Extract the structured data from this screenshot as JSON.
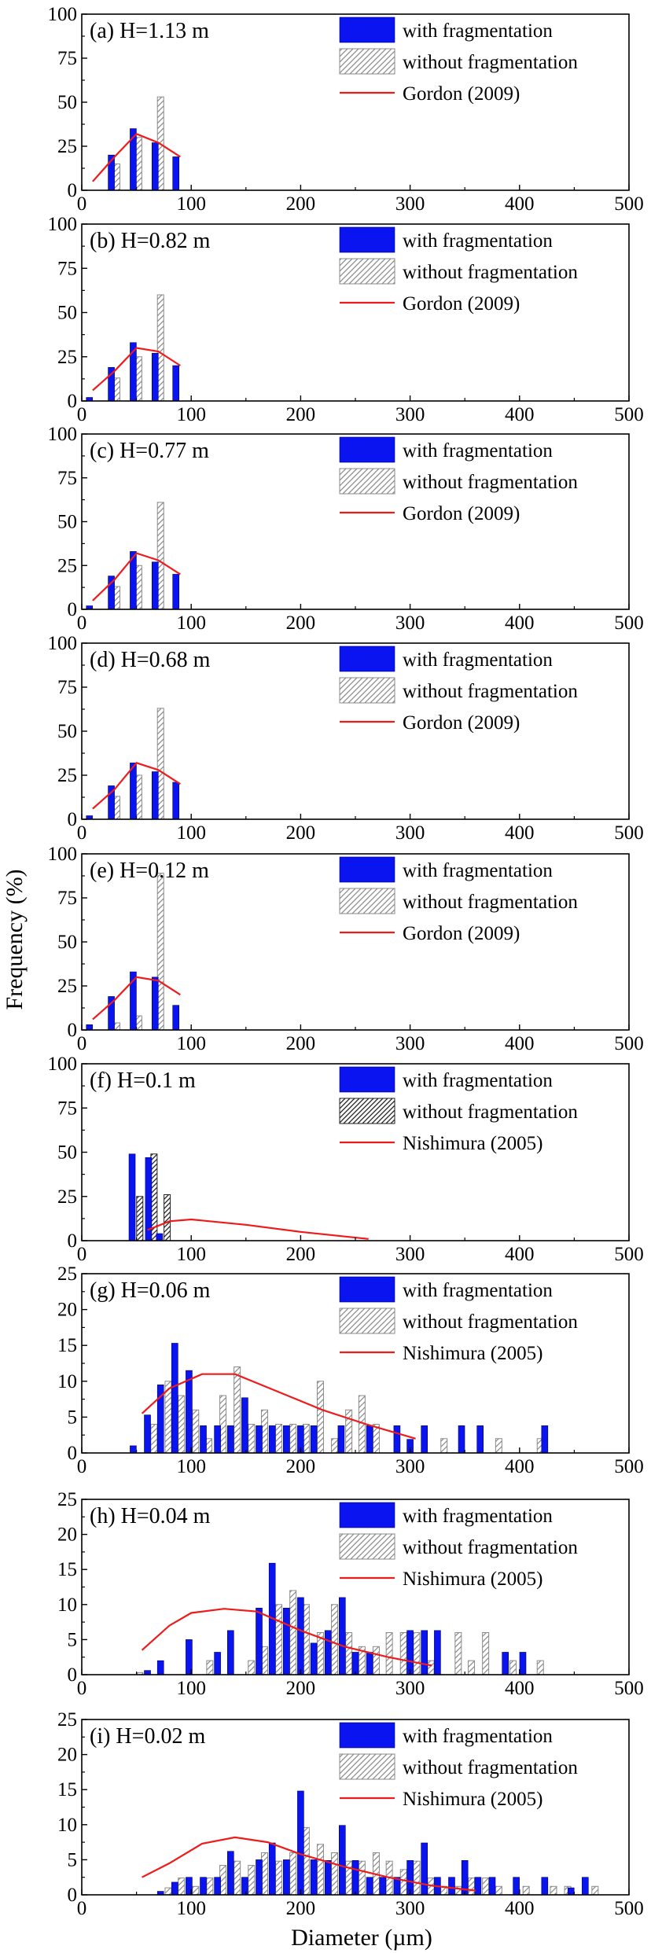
{
  "figure": {
    "ylabel": "Frequency (%)",
    "xlabel": "Diameter (µm)"
  },
  "colors": {
    "with": "#0a14f0",
    "without_stroke": "#8a8a8a",
    "without_stroke_dark": "#222222",
    "fit": "#ee1b1b",
    "axis": "#000000"
  },
  "chart_data": [
    {
      "type": "bar",
      "title": "(a) H=1.13 m",
      "xlim": [
        0,
        500
      ],
      "ylim": [
        0,
        100
      ],
      "yticks": [
        0,
        25,
        50,
        75,
        100
      ],
      "xticks": [
        0,
        100,
        200,
        300,
        400,
        500
      ],
      "legend": [
        "with fragmentation",
        "without fragmentation",
        "Gordon (2009)"
      ],
      "legend_position": "top-right",
      "hatch_style": "light",
      "series": [
        {
          "name": "with fragmentation",
          "x": [
            27,
            47,
            67,
            86
          ],
          "values": [
            20,
            35,
            27,
            19
          ]
        },
        {
          "name": "without fragmentation",
          "x": [
            32,
            52,
            72,
            91
          ],
          "values": [
            15,
            30,
            53,
            0
          ]
        },
        {
          "name": "Gordon (2009)",
          "kind": "line",
          "x": [
            10,
            30,
            50,
            70,
            90
          ],
          "values": [
            5,
            19,
            32,
            27,
            19
          ]
        }
      ]
    },
    {
      "type": "bar",
      "title": "(b) H=0.82 m",
      "xlim": [
        0,
        500
      ],
      "ylim": [
        0,
        100
      ],
      "yticks": [
        0,
        25,
        50,
        75,
        100
      ],
      "xticks": [
        0,
        100,
        200,
        300,
        400,
        500
      ],
      "legend": [
        "with fragmentation",
        "without fragmentation",
        "Gordon (2009)"
      ],
      "legend_position": "top-right",
      "hatch_style": "light",
      "series": [
        {
          "name": "with fragmentation",
          "x": [
            7,
            27,
            47,
            67,
            86
          ],
          "values": [
            2,
            19,
            33,
            27,
            20
          ]
        },
        {
          "name": "without fragmentation",
          "x": [
            12,
            32,
            52,
            72,
            91
          ],
          "values": [
            0,
            13,
            25,
            60,
            0
          ]
        },
        {
          "name": "Gordon (2009)",
          "kind": "line",
          "x": [
            10,
            30,
            50,
            70,
            90
          ],
          "values": [
            6,
            17,
            30,
            28,
            20
          ]
        }
      ]
    },
    {
      "type": "bar",
      "title": "(c) H=0.77 m",
      "xlim": [
        0,
        500
      ],
      "ylim": [
        0,
        100
      ],
      "yticks": [
        0,
        25,
        50,
        75,
        100
      ],
      "xticks": [
        0,
        100,
        200,
        300,
        400,
        500
      ],
      "legend": [
        "with fragmentation",
        "without fragmentation",
        "Gordon (2009)"
      ],
      "legend_position": "top-right",
      "hatch_style": "light",
      "series": [
        {
          "name": "with fragmentation",
          "x": [
            7,
            27,
            47,
            67,
            86
          ],
          "values": [
            2,
            19,
            33,
            27,
            20
          ]
        },
        {
          "name": "without fragmentation",
          "x": [
            12,
            32,
            52,
            72,
            91
          ],
          "values": [
            0,
            13,
            25,
            61,
            0
          ]
        },
        {
          "name": "Gordon (2009)",
          "kind": "line",
          "x": [
            10,
            30,
            50,
            70,
            90
          ],
          "values": [
            5,
            17,
            32,
            28,
            20
          ]
        }
      ]
    },
    {
      "type": "bar",
      "title": "(d) H=0.68 m",
      "xlim": [
        0,
        500
      ],
      "ylim": [
        0,
        100
      ],
      "yticks": [
        0,
        25,
        50,
        75,
        100
      ],
      "xticks": [
        0,
        100,
        200,
        300,
        400,
        500
      ],
      "legend": [
        "with fragmentation",
        "without fragmentation",
        "Gordon (2009)"
      ],
      "legend_position": "top-right",
      "hatch_style": "light",
      "series": [
        {
          "name": "with fragmentation",
          "x": [
            7,
            27,
            47,
            67,
            86
          ],
          "values": [
            2,
            19,
            32,
            27,
            21
          ]
        },
        {
          "name": "without fragmentation",
          "x": [
            12,
            32,
            52,
            72,
            91
          ],
          "values": [
            0,
            13,
            25,
            63,
            0
          ]
        },
        {
          "name": "Gordon (2009)",
          "kind": "line",
          "x": [
            10,
            30,
            50,
            70,
            90
          ],
          "values": [
            6,
            17,
            32,
            28,
            20
          ]
        }
      ]
    },
    {
      "type": "bar",
      "title": "(e) H=0.12 m",
      "xlim": [
        0,
        500
      ],
      "ylim": [
        0,
        100
      ],
      "yticks": [
        0,
        25,
        50,
        75,
        100
      ],
      "xticks": [
        0,
        100,
        200,
        300,
        400,
        500
      ],
      "legend": [
        "with fragmentation",
        "without fragmentation",
        "Gordon (2009)"
      ],
      "legend_position": "top-right",
      "hatch_style": "light",
      "series": [
        {
          "name": "with fragmentation",
          "x": [
            7,
            27,
            47,
            67,
            86
          ],
          "values": [
            3,
            19,
            33,
            30,
            14
          ]
        },
        {
          "name": "without fragmentation",
          "x": [
            12,
            32,
            52,
            72,
            91
          ],
          "values": [
            0,
            4,
            8,
            89,
            0
          ]
        },
        {
          "name": "Gordon (2009)",
          "kind": "line",
          "x": [
            10,
            30,
            50,
            70,
            90
          ],
          "values": [
            6,
            17,
            30,
            28,
            20
          ]
        }
      ]
    },
    {
      "type": "bar",
      "title": "(f) H=0.1 m",
      "xlim": [
        0,
        500
      ],
      "ylim": [
        0,
        100
      ],
      "yticks": [
        0,
        25,
        50,
        75,
        100
      ],
      "xticks": [
        0,
        100,
        200,
        300,
        400,
        500
      ],
      "legend": [
        "with fragmentation",
        "without fragmentation",
        "Nishimura (2005)"
      ],
      "legend_position": "top-right",
      "hatch_style": "dark",
      "series": [
        {
          "name": "with fragmentation",
          "x": [
            46,
            61,
            71
          ],
          "values": [
            49,
            47,
            4
          ]
        },
        {
          "name": "without fragmentation",
          "x": [
            53,
            66,
            78
          ],
          "values": [
            25,
            49,
            26
          ]
        },
        {
          "name": "Nishimura (2005)",
          "kind": "line",
          "x": [
            60,
            80,
            100,
            150,
            200,
            262
          ],
          "values": [
            6,
            11,
            12,
            9,
            5,
            1
          ]
        }
      ]
    },
    {
      "type": "bar",
      "title": "(g) H=0.06 m",
      "xlim": [
        0,
        500
      ],
      "ylim": [
        0,
        25
      ],
      "yticks": [
        0,
        5,
        10,
        15,
        20,
        25
      ],
      "xticks": [
        0,
        100,
        200,
        300,
        400,
        500
      ],
      "legend": [
        "with fragmentation",
        "without fragmentation",
        "Nishimura (2005)"
      ],
      "legend_position": "top-right",
      "hatch_style": "light",
      "series": [
        {
          "name": "with fragmentation",
          "x": [
            47,
            60,
            72,
            85,
            98,
            111,
            124,
            136,
            149,
            162,
            174,
            187,
            200,
            212,
            237,
            263,
            288,
            300,
            313,
            347,
            364,
            423
          ],
          "values": [
            1,
            5.3,
            9.5,
            15.3,
            11.5,
            3.8,
            3.8,
            3.8,
            7.7,
            3.8,
            3.8,
            3.8,
            3.8,
            3.8,
            3.8,
            3.8,
            3.8,
            1.9,
            3.8,
            3.8,
            3.8,
            3.8
          ]
        },
        {
          "name": "without fragmentation",
          "x": [
            66,
            79,
            91,
            104,
            116,
            129,
            142,
            155,
            167,
            180,
            193,
            205,
            218,
            231,
            244,
            256,
            269,
            331,
            381,
            419
          ],
          "values": [
            4,
            10,
            8,
            6,
            2,
            8,
            12,
            4,
            6,
            4,
            4,
            4,
            10,
            2,
            6,
            8,
            4,
            2,
            2,
            2
          ]
        },
        {
          "name": "Nishimura (2005)",
          "kind": "line",
          "x": [
            55,
            80,
            110,
            140,
            180,
            220,
            260,
            305
          ],
          "values": [
            5.5,
            9,
            11,
            11,
            8.5,
            6,
            4,
            2
          ]
        }
      ]
    },
    {
      "type": "bar",
      "title": "(h) H=0.04 m",
      "xlim": [
        0,
        500
      ],
      "ylim": [
        0,
        25
      ],
      "yticks": [
        0,
        5,
        10,
        15,
        20,
        25
      ],
      "xticks": [
        0,
        100,
        200,
        300,
        400,
        500
      ],
      "legend": [
        "with fragmentation",
        "without fragmentation",
        "Nishimura (2005)"
      ],
      "legend_position": "top-right",
      "hatch_style": "light",
      "series": [
        {
          "name": "with fragmentation",
          "x": [
            60,
            72,
            98,
            124,
            136,
            162,
            174,
            187,
            200,
            212,
            225,
            238,
            250,
            263,
            300,
            313,
            325,
            387,
            403
          ],
          "values": [
            0.6,
            2,
            5,
            3.2,
            6.3,
            9.5,
            15.9,
            9.5,
            11,
            4.5,
            6.3,
            11,
            3.2,
            3.2,
            6.3,
            6.3,
            6.3,
            3.2,
            3.2
          ]
        },
        {
          "name": "without fragmentation",
          "x": [
            53,
            117,
            155,
            167,
            180,
            193,
            205,
            218,
            231,
            244,
            256,
            269,
            281,
            294,
            306,
            319,
            344,
            356,
            369,
            394,
            419
          ],
          "values": [
            0.3,
            2,
            2,
            4,
            10,
            12,
            10,
            6,
            10,
            6,
            4,
            4,
            6,
            6,
            6,
            2,
            6,
            2,
            6,
            2,
            2
          ]
        },
        {
          "name": "Nishimura (2005)",
          "kind": "line",
          "x": [
            55,
            80,
            100,
            130,
            160,
            200,
            240,
            280,
            320
          ],
          "values": [
            3.5,
            7,
            8.8,
            9.4,
            9,
            6.3,
            4,
            2.5,
            1.3
          ]
        }
      ]
    },
    {
      "type": "bar",
      "title": "(i) H=0.02 m",
      "xlim": [
        0,
        500
      ],
      "ylim": [
        0,
        25
      ],
      "yticks": [
        0,
        5,
        10,
        15,
        20,
        25
      ],
      "xticks": [
        0,
        100,
        200,
        300,
        400,
        500
      ],
      "legend": [
        "with fragmentation",
        "without fragmentation",
        "Nishimura (2005)"
      ],
      "legend_position": "top-right",
      "hatch_style": "light",
      "series": [
        {
          "name": "with fragmentation",
          "x": [
            72,
            85,
            98,
            111,
            124,
            136,
            149,
            162,
            174,
            187,
            200,
            212,
            225,
            238,
            250,
            263,
            275,
            288,
            300,
            313,
            325,
            338,
            350,
            362,
            375,
            397,
            423,
            447,
            460
          ],
          "values": [
            0.5,
            1.8,
            2.5,
            2.5,
            2.5,
            6.2,
            2.5,
            5,
            7.4,
            5,
            14.8,
            5,
            4.9,
            9.9,
            4.9,
            2.5,
            2.5,
            2.5,
            4.9,
            7.4,
            2.5,
            2.5,
            4.9,
            2.5,
            2.5,
            2.5,
            2.5,
            1,
            2.5
          ]
        },
        {
          "name": "without fragmentation",
          "x": [
            79,
            91,
            104,
            117,
            129,
            142,
            155,
            167,
            180,
            193,
            205,
            218,
            231,
            244,
            256,
            269,
            281,
            294,
            306,
            319,
            331,
            344,
            356,
            369,
            381,
            406,
            431,
            444,
            469
          ],
          "values": [
            1,
            2.4,
            1.2,
            2.4,
            4.2,
            4.8,
            4.2,
            6,
            4.8,
            6,
            9.6,
            7.2,
            6,
            4.8,
            4.8,
            6,
            4.8,
            3.6,
            4.8,
            2.4,
            1.2,
            1.2,
            2.4,
            2.4,
            1.2,
            1.2,
            1.2,
            1.2,
            1.2
          ]
        },
        {
          "name": "Nishimura (2005)",
          "kind": "line",
          "x": [
            55,
            80,
            110,
            140,
            170,
            200,
            240,
            280,
            320,
            360
          ],
          "values": [
            2.5,
            4.5,
            7.3,
            8.2,
            7.5,
            5.8,
            4,
            2.5,
            1.3,
            0.6
          ]
        }
      ]
    }
  ]
}
